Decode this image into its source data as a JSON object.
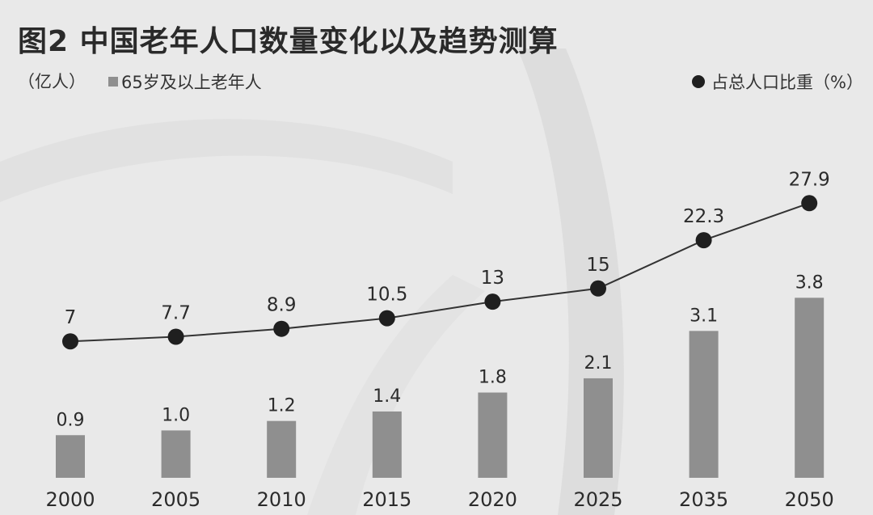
{
  "header": {
    "title": "图2 中国老年人口数量变化以及趋势测算",
    "unit_label": "（亿人）",
    "legend_bar_label": "65岁及以上老年人",
    "legend_line_label": "占总人口比重（%）"
  },
  "colors": {
    "background": "#e9e9e9",
    "bar": "#8f8f8f",
    "line": "#333333",
    "point": "#1f1f1f",
    "text": "#2b2b2b"
  },
  "chart_data": {
    "type": "bar",
    "categories": [
      "2000",
      "2005",
      "2010",
      "2015",
      "2020",
      "2025",
      "2035",
      "2050"
    ],
    "series": [
      {
        "name": "65岁及以上老年人",
        "type": "bar",
        "unit": "亿人",
        "values": [
          0.9,
          1.0,
          1.2,
          1.4,
          1.8,
          2.1,
          3.1,
          3.8
        ],
        "labels": [
          "0.9",
          "1.0",
          "1.2",
          "1.4",
          "1.8",
          "2.1",
          "3.1",
          "3.8"
        ]
      },
      {
        "name": "占总人口比重（%）",
        "type": "line",
        "unit": "%",
        "values": [
          7,
          7.7,
          8.9,
          10.5,
          13,
          15,
          22.3,
          27.9
        ],
        "labels": [
          "7",
          "7.7",
          "8.9",
          "10.5",
          "13",
          "15",
          "22.3",
          "27.9"
        ]
      }
    ],
    "legend_placement": "top",
    "grid": false
  }
}
